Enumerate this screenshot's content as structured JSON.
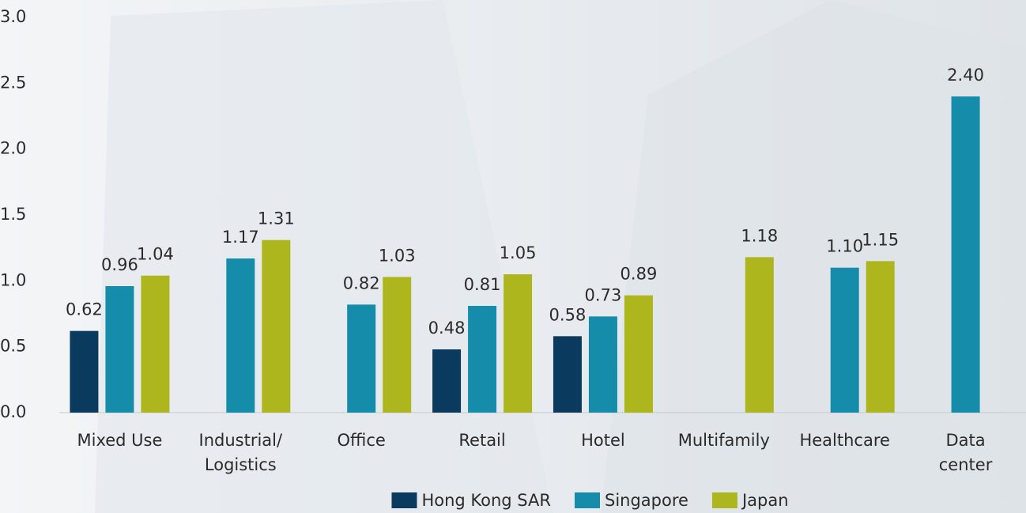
{
  "chart_data": {
    "type": "bar",
    "categories": [
      "Mixed Use",
      "Industrial/\nLogistics",
      "Office",
      "Retail",
      "Hotel",
      "Multifamily",
      "Healthcare",
      "Data\ncenter"
    ],
    "series": [
      {
        "name": "Hong Kong SAR",
        "color": "#0b3a5f",
        "values": [
          0.62,
          null,
          null,
          0.48,
          0.58,
          null,
          null,
          null
        ],
        "value_labels": [
          "0.62",
          null,
          null,
          "0.48",
          "0.58",
          null,
          null,
          null
        ]
      },
      {
        "name": "Singapore",
        "color": "#168cab",
        "values": [
          0.96,
          1.17,
          0.82,
          0.81,
          0.73,
          null,
          1.1,
          2.4
        ],
        "value_labels": [
          "0.96",
          "1.17",
          "0.82",
          "0.81",
          "0.73",
          null,
          "1.10",
          "2.40"
        ]
      },
      {
        "name": "Japan",
        "color": "#adb61c",
        "values": [
          1.04,
          1.31,
          1.03,
          1.05,
          0.89,
          1.18,
          1.15,
          null
        ],
        "value_labels": [
          "1.04",
          "1.31",
          "1.03",
          "1.05",
          "0.89",
          "1.18",
          "1.15",
          null
        ]
      }
    ],
    "ylim": [
      0,
      3
    ],
    "yticks": [
      {
        "value": 0,
        "label": "0.0"
      },
      0.5,
      {
        "value": 1,
        "label": "1.0"
      },
      1.5,
      {
        "value": 2,
        "label": "2.0"
      },
      2.5,
      {
        "value": 3,
        "label": "3.0"
      }
    ],
    "legend": "bottom"
  }
}
